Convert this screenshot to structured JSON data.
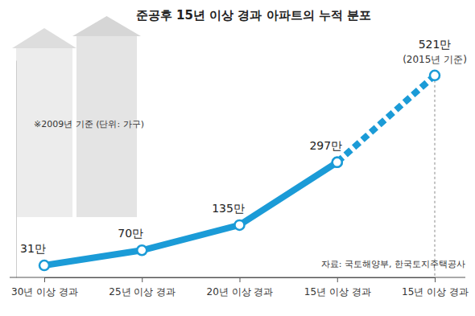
{
  "chart_data": {
    "type": "line",
    "title": "준공후 15년 이상 경과 아파트의 누적 분포",
    "subtitle": "※2009년 기준 (단위: 가구)",
    "source": "자료: 국토해양부, 한국토지주택공사",
    "categories": [
      "30년 이상 경과",
      "25년 이상 경과",
      "20년 이상 경과",
      "15년 이상 경과",
      "15년 이상 경과"
    ],
    "series": [
      {
        "color": "#1b9bd7",
        "line_style": "solid",
        "marker": "circle",
        "values": [
          31,
          70,
          135,
          297,
          null
        ],
        "value_labels": [
          "31만",
          "70만",
          "135만",
          "297만",
          null
        ]
      },
      {
        "color": "#1b9bd7",
        "line_style": "dashed",
        "marker": "circle",
        "values": [
          null,
          null,
          null,
          297,
          521
        ],
        "value_labels": [
          null,
          null,
          null,
          null,
          "521만"
        ]
      }
    ],
    "annotations": [
      "(2015년 기준)"
    ],
    "ylim": [
      0,
      560
    ],
    "data_labels": true,
    "tick_labels": "x",
    "grid": false
  }
}
